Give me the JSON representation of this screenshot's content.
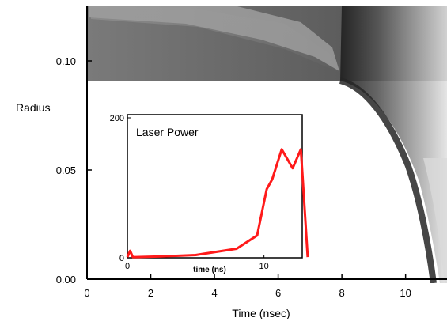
{
  "chart_data": [
    {
      "type": "heatmap",
      "xlabel": "Time (nsec)",
      "ylabel": "Radius",
      "xlim": [
        0,
        11.3
      ],
      "ylim": [
        0,
        0.125
      ],
      "x_ticks": [
        "0",
        "2",
        "4",
        "6",
        "8",
        "10"
      ],
      "y_ticks": [
        "0.00",
        "0.05",
        "0.10"
      ],
      "front_profile": {
        "x": [
          0,
          8,
          8.6,
          9.0,
          9.4,
          9.8,
          10.2,
          10.6,
          11.0,
          11.2
        ],
        "y": [
          0.09,
          0.09,
          0.086,
          0.081,
          0.073,
          0.061,
          0.046,
          0.028,
          0.009,
          0.0
        ]
      },
      "colors": {
        "ablated_region": "#6e6e6e",
        "dark_edge": "#2e2e2e",
        "light_gradient": "#d8d8d8"
      }
    },
    {
      "type": "line",
      "title": "Laser Power",
      "xlabel": "time (ns)",
      "ylabel": "",
      "xlim": [
        0,
        12.8
      ],
      "ylim": [
        0,
        200
      ],
      "x_ticks": [
        "0",
        "10"
      ],
      "y_ticks": [
        "0",
        "200"
      ],
      "series": [
        {
          "color": "#ff1a1a",
          "x": [
            0,
            0.2,
            0.4,
            0.6,
            2.5,
            5,
            8,
            9.5,
            10.2,
            10.6,
            11.3,
            12.1,
            12.7,
            13.2
          ],
          "y": [
            1,
            10,
            1,
            1,
            2,
            4,
            13,
            32,
            98,
            112,
            155,
            128,
            155,
            1
          ]
        }
      ]
    }
  ]
}
